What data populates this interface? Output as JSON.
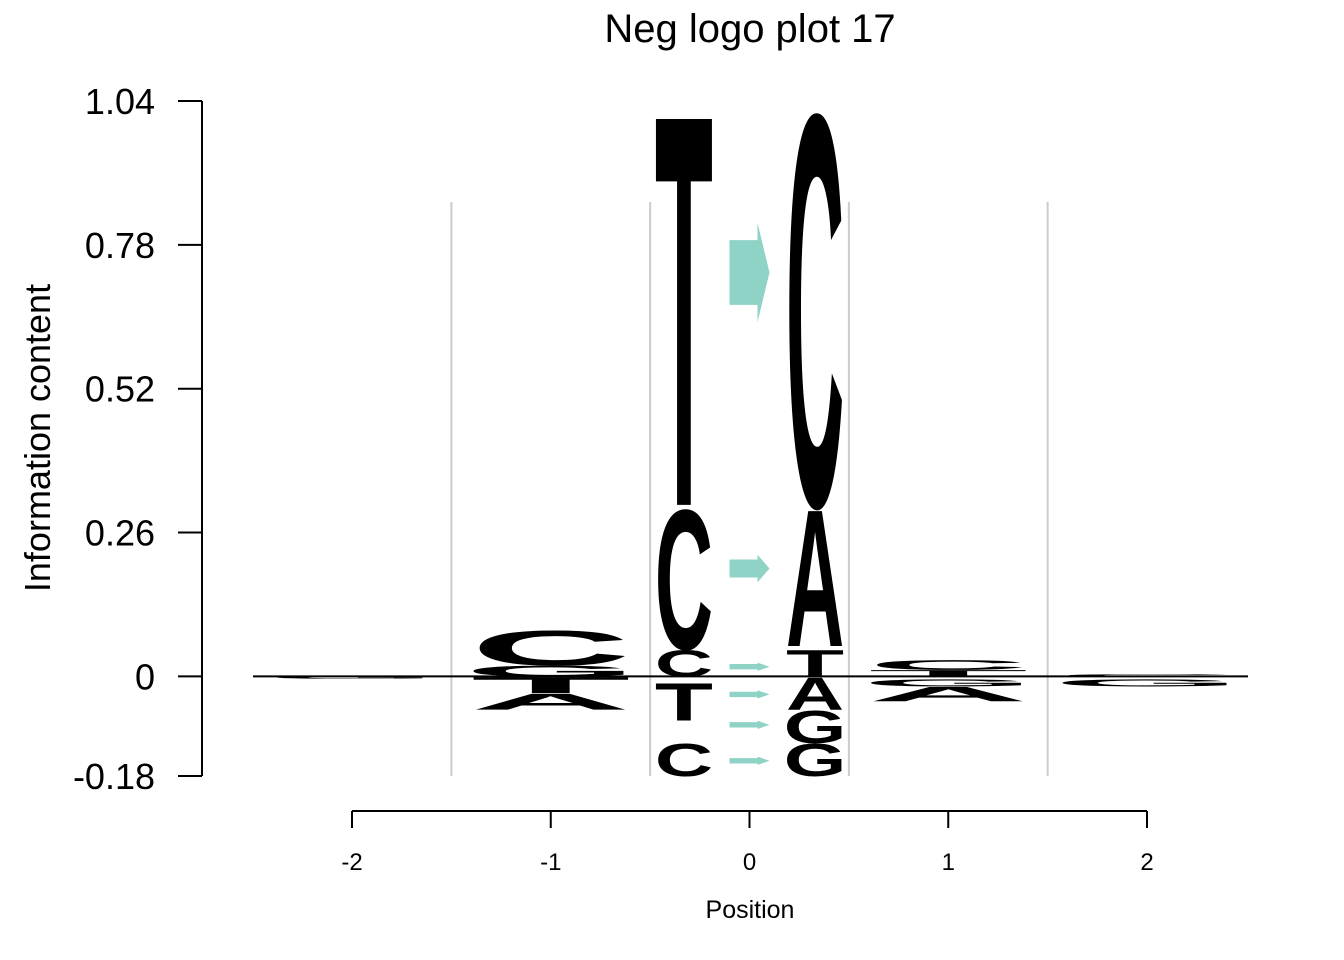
{
  "chart_data": {
    "type": "sequence-logo",
    "title": "Neg logo plot 17",
    "xlabel": "Position",
    "ylabel": "Information content",
    "yticks": [
      "1.04",
      "0.78",
      "0.52",
      "0.26",
      "0",
      "-0.18"
    ],
    "ylim": [
      -0.18,
      1.04
    ],
    "xticks": [
      "-2",
      "-1",
      "0",
      "1",
      "2"
    ],
    "xlim": [
      -2.5,
      2.5
    ],
    "colors": {
      "A": "#bcbddc",
      "C": "#fb9a99",
      "G": "#c2571a",
      "T": "#e3c592",
      "arrow": "#8fd3c6"
    },
    "columns": [
      {
        "position": -2,
        "above": [],
        "below": [
          {
            "letter": "G",
            "bottom": -0.004,
            "top": 0.0
          }
        ]
      },
      {
        "position": -1,
        "above": [
          {
            "letter": "G",
            "bottom": 0.0,
            "top": 0.02
          },
          {
            "letter": "C",
            "bottom": 0.02,
            "top": 0.085
          }
        ],
        "below": [
          {
            "letter": "T",
            "bottom": -0.03,
            "top": 0.0
          },
          {
            "letter": "A",
            "bottom": -0.06,
            "top": -0.03
          }
        ]
      },
      {
        "position": -0.33,
        "above": [
          {
            "letter": "C",
            "bottom": 0.0,
            "top": 0.05
          },
          {
            "letter": "C",
            "bottom": 0.05,
            "top": 0.31
          },
          {
            "letter": "T",
            "bottom": 0.31,
            "top": 1.04
          }
        ],
        "below": [
          {
            "letter": "T",
            "bottom": -0.08,
            "top": -0.01
          },
          {
            "letter": "C",
            "bottom": -0.18,
            "top": -0.12
          }
        ]
      },
      {
        "position": 0,
        "above": [
          {
            "letter": "arrow",
            "bottom": 0.01,
            "top": 0.025
          },
          {
            "letter": "arrow",
            "bottom": 0.17,
            "top": 0.22
          },
          {
            "letter": "arrow",
            "bottom": 0.64,
            "top": 0.82
          }
        ],
        "below": [
          {
            "letter": "arrow",
            "bottom": -0.04,
            "top": -0.025
          },
          {
            "letter": "arrow",
            "bottom": -0.095,
            "top": -0.08
          },
          {
            "letter": "arrow",
            "bottom": -0.16,
            "top": -0.145
          }
        ]
      },
      {
        "position": 0.33,
        "above": [
          {
            "letter": "T",
            "bottom": 0.0,
            "top": 0.05
          },
          {
            "letter": "A",
            "bottom": 0.055,
            "top": 0.31
          },
          {
            "letter": "C",
            "bottom": 0.31,
            "top": 1.04
          }
        ],
        "below": [
          {
            "letter": "A",
            "bottom": -0.06,
            "top": 0.0
          },
          {
            "letter": "G",
            "bottom": -0.12,
            "top": -0.06
          },
          {
            "letter": "G",
            "bottom": -0.18,
            "top": -0.12
          }
        ]
      },
      {
        "position": 1,
        "above": [
          {
            "letter": "T",
            "bottom": 0.0,
            "top": 0.012
          },
          {
            "letter": "C",
            "bottom": 0.012,
            "top": 0.03
          }
        ],
        "below": [
          {
            "letter": "G",
            "bottom": -0.018,
            "top": -0.005
          },
          {
            "letter": "A",
            "bottom": -0.045,
            "top": -0.018
          }
        ]
      },
      {
        "position": 2,
        "above": [
          {
            "letter": "C",
            "bottom": 0.0,
            "top": 0.004
          }
        ],
        "below": [
          {
            "letter": "G",
            "bottom": -0.018,
            "top": -0.005
          }
        ]
      }
    ]
  }
}
